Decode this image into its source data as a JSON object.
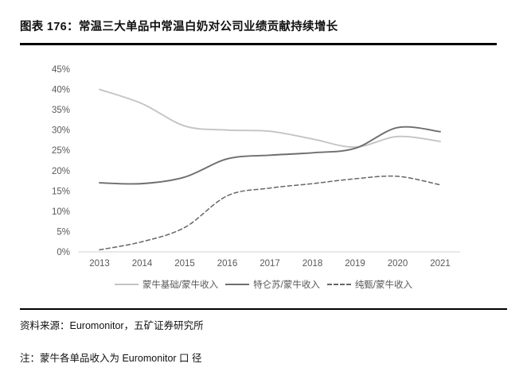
{
  "figure": {
    "title": "图表 176：常温三大单品中常温白奶对公司业绩贡献持续增长",
    "source_label": "资料来源：Euromonitor，五矿证券研究所",
    "note_label": "注：蒙牛各单品收入为 Euromonitor 口 径"
  },
  "colors": {
    "title_text": "#111111",
    "divider": "#000000",
    "axis_line": "#d9d9d9",
    "tick_text": "#595959",
    "legend_text": "#595959"
  },
  "chart_data": {
    "type": "line",
    "title": "",
    "xlabel": "",
    "ylabel": "",
    "categories": [
      "2013",
      "2014",
      "2015",
      "2016",
      "2017",
      "2018",
      "2019",
      "2020",
      "2021"
    ],
    "yticks": [
      "0%",
      "5%",
      "10%",
      "15%",
      "20%",
      "25%",
      "30%",
      "35%",
      "40%",
      "45%"
    ],
    "ylim": [
      0,
      45
    ],
    "grid": false,
    "legend_position": "bottom",
    "series": [
      {
        "name": "蒙牛基础/蒙牛收入",
        "color": "#c4c4c4",
        "dash": false,
        "values": [
          40,
          36.5,
          31,
          30,
          29.7,
          27.8,
          25.8,
          28.4,
          27.2
        ]
      },
      {
        "name": "特仑苏/蒙牛收入",
        "color": "#6e6e6e",
        "dash": false,
        "values": [
          17,
          16.8,
          18.4,
          22.9,
          23.8,
          24.4,
          25.5,
          30.6,
          29.6
        ]
      },
      {
        "name": "纯甄/蒙牛收入",
        "color": "#666666",
        "dash": true,
        "values": [
          0.5,
          2.5,
          6,
          13.8,
          15.7,
          16.8,
          18,
          18.6,
          16.5
        ]
      }
    ]
  }
}
